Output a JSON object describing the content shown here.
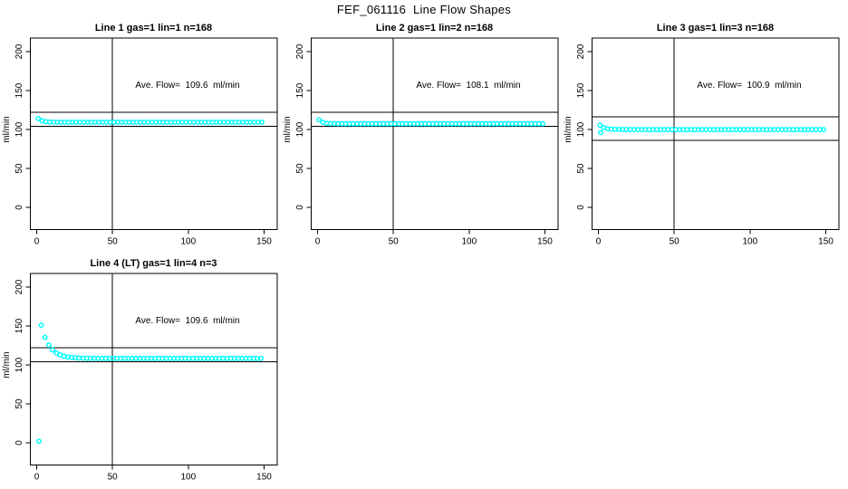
{
  "page": {
    "main_title": "FEF_061116  Line Flow Shapes"
  },
  "colors": {
    "points": "#00FFFF",
    "axis": "#000000",
    "text": "#000000",
    "background": "#FFFFFF"
  },
  "chart_data": [
    {
      "type": "scatter",
      "title": "Line 1 gas=1 lin=1 n=168",
      "annotation": "Ave. Flow=  109.6  ml/min",
      "ylabel": "ml/min",
      "xticks": [
        0,
        50,
        100,
        150
      ],
      "yticks": [
        0,
        50,
        100,
        150,
        200
      ],
      "xlim": [
        0,
        150
      ],
      "ylim": [
        0,
        200
      ],
      "marker": "open-circle",
      "ref_line_x": 50,
      "ref_lines_y": [
        122,
        104
      ],
      "series": {
        "name": "flow",
        "x_start": 1,
        "x_step": 2.5,
        "y": [
          114.2,
          111.2,
          110.0,
          109.6,
          109.5,
          109.4,
          109.4,
          109.4,
          109.4,
          109.4,
          109.4,
          109.4,
          109.4,
          109.4,
          109.4,
          109.4,
          109.4,
          109.4,
          109.4,
          109.4,
          109.4,
          109.4,
          109.4,
          109.4,
          109.4,
          109.4,
          109.4,
          109.4,
          109.4,
          109.4,
          109.4,
          109.4,
          109.4,
          109.4,
          109.4,
          109.4,
          109.4,
          109.4,
          109.4,
          109.4,
          109.4,
          109.4,
          109.4,
          109.4,
          109.4,
          109.4,
          109.4,
          109.4,
          109.4,
          109.4,
          109.4,
          109.4,
          109.4,
          109.4,
          109.4,
          109.4,
          109.4,
          109.4,
          109.4,
          109.4
        ]
      },
      "extra_points": []
    },
    {
      "type": "scatter",
      "title": "Line 2 gas=1 lin=2 n=168",
      "annotation": "Ave. Flow=  108.1  ml/min",
      "ylabel": "ml/min",
      "xticks": [
        0,
        50,
        100,
        150
      ],
      "yticks": [
        0,
        50,
        100,
        150,
        200
      ],
      "xlim": [
        0,
        150
      ],
      "ylim": [
        0,
        200
      ],
      "marker": "open-circle",
      "ref_line_x": 50,
      "ref_lines_y": [
        122,
        104
      ],
      "series": {
        "name": "flow",
        "x_start": 1,
        "x_step": 2.5,
        "y": [
          112.4,
          109.2,
          108.1,
          107.6,
          107.5,
          107.4,
          107.4,
          107.4,
          107.4,
          107.4,
          107.4,
          107.4,
          107.4,
          107.4,
          107.4,
          107.4,
          107.4,
          107.4,
          107.4,
          107.4,
          107.4,
          107.4,
          107.4,
          107.4,
          107.4,
          107.4,
          107.4,
          107.4,
          107.4,
          107.4,
          107.4,
          107.4,
          107.4,
          107.4,
          107.4,
          107.4,
          107.4,
          107.4,
          107.4,
          107.4,
          107.4,
          107.4,
          107.4,
          107.4,
          107.4,
          107.4,
          107.4,
          107.4,
          107.4,
          107.4,
          107.4,
          107.4,
          107.4,
          107.4,
          107.4,
          107.4,
          107.4,
          107.4,
          107.4,
          107.4
        ]
      },
      "extra_points": []
    },
    {
      "type": "scatter",
      "title": "Line 3 gas=1 lin=3 n=168",
      "annotation": "Ave. Flow=  100.9  ml/min",
      "ylabel": "ml/min",
      "xticks": [
        0,
        50,
        100,
        150
      ],
      "yticks": [
        0,
        50,
        100,
        150,
        200
      ],
      "xlim": [
        0,
        150
      ],
      "ylim": [
        0,
        200
      ],
      "marker": "open-circle",
      "ref_line_x": 50,
      "ref_lines_y": [
        116,
        86
      ],
      "series": {
        "name": "flow",
        "x_start": 1,
        "x_step": 2.5,
        "y": [
          105.4,
          102.6,
          101.2,
          100.5,
          100.2,
          100.1,
          100.0,
          100.0,
          99.9,
          99.9,
          99.9,
          99.9,
          99.9,
          99.9,
          99.9,
          99.9,
          99.9,
          99.9,
          99.9,
          99.9,
          99.9,
          99.9,
          99.9,
          99.9,
          99.9,
          99.9,
          99.9,
          99.9,
          99.9,
          99.9,
          99.9,
          99.9,
          99.9,
          99.9,
          99.9,
          99.9,
          99.9,
          99.9,
          99.9,
          99.9,
          99.9,
          99.9,
          99.9,
          99.9,
          99.9,
          99.9,
          99.9,
          99.9,
          99.9,
          99.9,
          99.9,
          99.9,
          99.9,
          99.9,
          99.9,
          99.9,
          99.9,
          99.9,
          99.9,
          99.9
        ]
      },
      "extra_points": [
        [
          1.5,
          96
        ]
      ]
    },
    {
      "type": "scatter",
      "title": "Line 4 (LT) gas=1 lin=4 n=3",
      "annotation": "Ave. Flow=  109.6  ml/min",
      "ylabel": "ml/min",
      "xticks": [
        0,
        50,
        100,
        150
      ],
      "yticks": [
        0,
        50,
        100,
        150,
        200
      ],
      "xlim": [
        0,
        150
      ],
      "ylim": [
        0,
        200
      ],
      "marker": "open-circle",
      "ref_line_x": 50,
      "ref_lines_y": [
        122,
        104
      ],
      "series": {
        "name": "flow",
        "x_start": 3,
        "x_step": 2.5,
        "y": [
          150.9,
          135.4,
          125.5,
          119.3,
          115.3,
          112.8,
          111.2,
          110.2,
          109.5,
          109.1,
          108.9,
          108.7,
          108.6,
          108.5,
          108.5,
          108.4,
          108.4,
          108.4,
          108.4,
          108.4,
          108.4,
          108.4,
          108.4,
          108.4,
          108.4,
          108.4,
          108.4,
          108.4,
          108.4,
          108.4,
          108.4,
          108.4,
          108.4,
          108.4,
          108.4,
          108.4,
          108.4,
          108.4,
          108.4,
          108.4,
          108.4,
          108.4,
          108.4,
          108.4,
          108.4,
          108.4,
          108.4,
          108.4,
          108.4,
          108.4,
          108.4,
          108.4,
          108.4,
          108.4,
          108.4,
          108.4,
          108.4,
          108.4,
          108.4
        ]
      },
      "extra_points": [
        [
          1.5,
          2
        ]
      ]
    }
  ]
}
